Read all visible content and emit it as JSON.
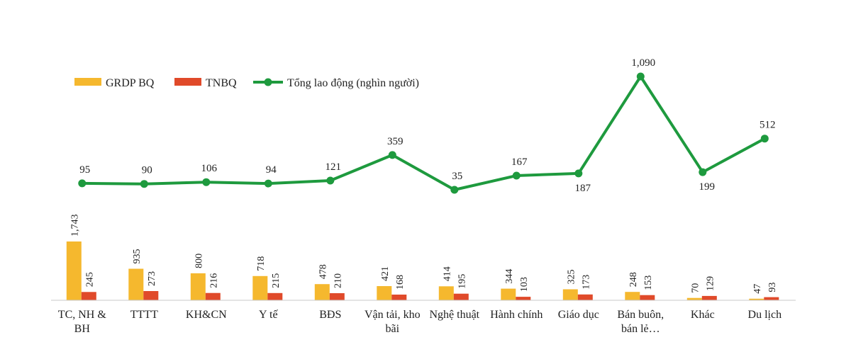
{
  "chart_data": {
    "type": "bar",
    "categories": [
      [
        "TC, NH &",
        "BH"
      ],
      [
        "TTTT"
      ],
      [
        "KH&CN"
      ],
      [
        "Y tế"
      ],
      [
        "BĐS"
      ],
      [
        "Vận tải, kho",
        "bãi"
      ],
      [
        "Nghệ thuật"
      ],
      [
        "Hành chính"
      ],
      [
        "Giáo dục"
      ],
      [
        "Bán buôn,",
        "bán lẻ…"
      ],
      [
        "Khác"
      ],
      [
        "Du lịch"
      ]
    ],
    "series": [
      {
        "name": "GRDP BQ",
        "type": "bar",
        "color": "#f5b82e",
        "values": [
          1743,
          935,
          800,
          718,
          478,
          421,
          414,
          344,
          325,
          248,
          70,
          47
        ],
        "labels": [
          "1,743",
          "935",
          "800",
          "718",
          "478",
          "421",
          "414",
          "344",
          "325",
          "248",
          "70",
          "47"
        ]
      },
      {
        "name": "TNBQ",
        "type": "bar",
        "color": "#e04a2a",
        "values": [
          245,
          273,
          216,
          215,
          210,
          168,
          195,
          103,
          173,
          153,
          129,
          93
        ],
        "labels": [
          "245",
          "273",
          "216",
          "215",
          "210",
          "168",
          "195",
          "103",
          "173",
          "153",
          "129",
          "93"
        ]
      },
      {
        "name": "Tổng lao động (nghìn người)",
        "type": "line",
        "color": "#1e9a3e",
        "values": [
          95,
          90,
          106,
          94,
          121,
          359,
          35,
          167,
          187,
          1090,
          199,
          512
        ],
        "labels": [
          "95",
          "90",
          "106",
          "94",
          "121",
          "359",
          "35",
          "167",
          "187",
          "1,090",
          "199",
          "512"
        ],
        "label_position": [
          "above",
          "above",
          "above",
          "above",
          "above",
          "above",
          "above",
          "above",
          "below",
          "above",
          "below",
          "above"
        ]
      }
    ],
    "legend": "top-left"
  }
}
